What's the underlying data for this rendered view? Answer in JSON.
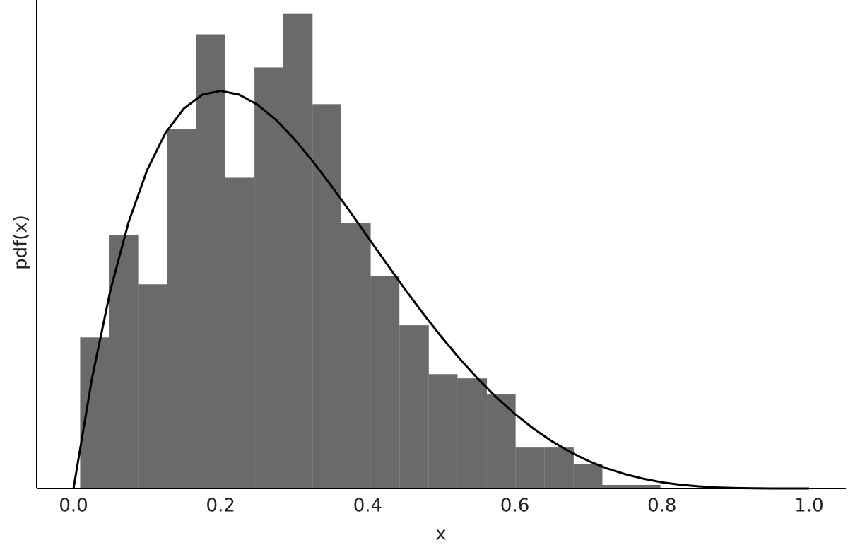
{
  "chart_data": {
    "type": "histogram",
    "xlabel": "x",
    "ylabel": "pdf(x)",
    "xlim": [
      -0.05,
      1.05
    ],
    "ylim": [
      0,
      3.02
    ],
    "xticks": [
      {
        "value": 0,
        "label": "0.0"
      },
      0.2,
      0.4,
      0.6,
      0.8,
      {
        "value": 1,
        "label": "1.0"
      }
    ],
    "color": "#6a6a6a",
    "bins": [
      0.009,
      0.048,
      0.088,
      0.127,
      0.167,
      0.206,
      0.246,
      0.285,
      0.325,
      0.364,
      0.404,
      0.443,
      0.483,
      0.522,
      0.562,
      0.601,
      0.64,
      0.68,
      0.719,
      0.759,
      0.798
    ],
    "values": [
      0.934,
      1.568,
      1.262,
      2.223,
      2.808,
      1.921,
      2.603,
      2.934,
      2.376,
      1.642,
      1.314,
      1.009,
      0.707,
      0.681,
      0.581,
      0.253,
      0.253,
      0.153,
      0.022,
      0.022
    ],
    "line": {
      "color": "#000000",
      "x": [
        0,
        0.025,
        0.05,
        0.075,
        0.1,
        0.125,
        0.15,
        0.175,
        0.2,
        0.225,
        0.25,
        0.275,
        0.3,
        0.325,
        0.35,
        0.375,
        0.4,
        0.425,
        0.45,
        0.475,
        0.5,
        0.525,
        0.55,
        0.575,
        0.6,
        0.625,
        0.65,
        0.675,
        0.7,
        0.725,
        0.75,
        0.775,
        0.8,
        0.825,
        0.85,
        0.875,
        0.9,
        0.925,
        0.95,
        0.975,
        1
      ],
      "values": [
        0,
        0.678,
        1.222,
        1.648,
        1.968,
        2.198,
        2.349,
        2.434,
        2.458,
        2.435,
        2.373,
        2.28,
        2.161,
        2.024,
        1.874,
        1.717,
        1.555,
        1.394,
        1.235,
        1.083,
        0.938,
        0.802,
        0.677,
        0.563,
        0.461,
        0.371,
        0.293,
        0.226,
        0.17,
        0.124,
        0.088,
        0.06,
        0.038,
        0.023,
        0.013,
        0.006,
        0.003,
        0.001,
        0.0002,
        0,
        0
      ]
    }
  }
}
